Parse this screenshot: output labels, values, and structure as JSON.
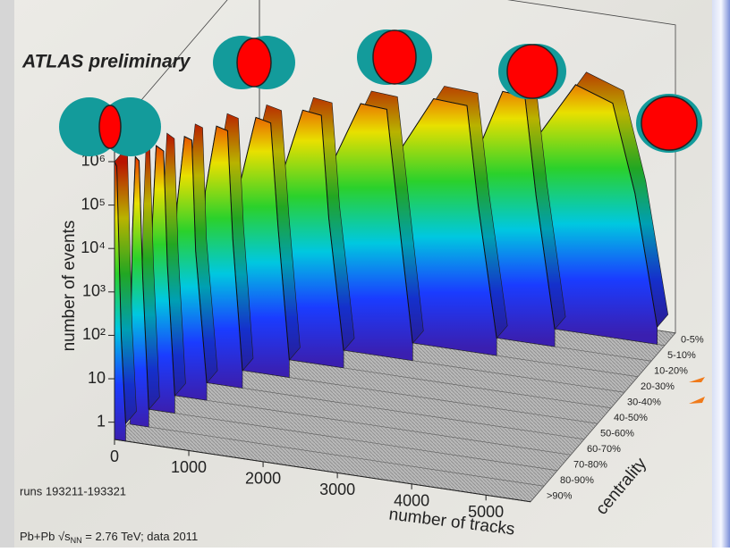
{
  "chart_data": {
    "type": "lego3d",
    "title": "ATLAS preliminary",
    "y_label": "number of events",
    "x_label": "number of tracks",
    "z_label": "centrality",
    "ylog": true,
    "xlim": [
      0,
      5600
    ],
    "ylim": [
      0.4,
      5000000
    ],
    "xticks": [
      0,
      1000,
      2000,
      3000,
      4000,
      5000
    ],
    "yticks": [
      1,
      10,
      {
        "value": 100,
        "label": "10²"
      },
      {
        "value": 1000,
        "label": "10³"
      },
      {
        "value": 10000,
        "label": "10⁴"
      },
      {
        "value": 100000,
        "label": "10⁵"
      },
      {
        "value": 1000000,
        "label": "10⁶"
      }
    ],
    "series": [
      {
        "name": "0-5%",
        "x": [
          3800,
          3900,
          4400,
          4900,
          5200,
          5500
        ],
        "values": [
          10,
          10000,
          200000,
          100000,
          1000,
          1
        ]
      },
      {
        "name": "5-10%",
        "x": [
          3200,
          3300,
          3600,
          3900,
          4050,
          4300
        ],
        "values": [
          10,
          10000,
          200000,
          180000,
          1000,
          1
        ]
      },
      {
        "name": "10-20%",
        "x": [
          2300,
          2400,
          2850,
          3300,
          3450,
          3700
        ],
        "values": [
          10,
          10000,
          200000,
          180000,
          1000,
          1
        ]
      },
      {
        "name": "20-30%",
        "x": [
          1600,
          1700,
          2050,
          2400,
          2550,
          2750
        ],
        "values": [
          10,
          10000,
          220000,
          200000,
          1000,
          1
        ]
      },
      {
        "name": "30-40%",
        "x": [
          1100,
          1200,
          1450,
          1700,
          1800,
          2000
        ],
        "values": [
          10,
          10000,
          250000,
          220000,
          1000,
          1
        ]
      },
      {
        "name": "40-50%",
        "x": [
          750,
          800,
          1000,
          1200,
          1300,
          1450
        ],
        "values": [
          10,
          10000,
          300000,
          250000,
          1000,
          1
        ]
      },
      {
        "name": "50-60%",
        "x": [
          450,
          500,
          650,
          800,
          870,
          1000
        ],
        "values": [
          10,
          10000,
          350000,
          300000,
          1000,
          1
        ]
      },
      {
        "name": "60-70%",
        "x": [
          250,
          300,
          400,
          500,
          550,
          700
        ],
        "values": [
          10,
          10000,
          400000,
          350000,
          1000,
          1
        ]
      },
      {
        "name": "70-80%",
        "x": [
          100,
          150,
          200,
          300,
          350,
          450
        ],
        "values": [
          10,
          10000,
          500000,
          400000,
          1000,
          1
        ]
      },
      {
        "name": "80-90%",
        "x": [
          30,
          60,
          100,
          150,
          200,
          280
        ],
        "values": [
          10,
          10000,
          600000,
          500000,
          1000,
          1
        ]
      },
      {
        "name": ">90%",
        "x": [
          0,
          30,
          60,
          90,
          150
        ],
        "values": [
          1000000,
          800000,
          10000,
          100,
          1
        ]
      }
    ],
    "notes": {
      "runs": "runs 193211-193321",
      "collision": "Pb+Pb",
      "energy_symbol": "√s",
      "energy_sub": "NN",
      "energy_rest": " = 2.76 TeV; data 2011"
    }
  }
}
